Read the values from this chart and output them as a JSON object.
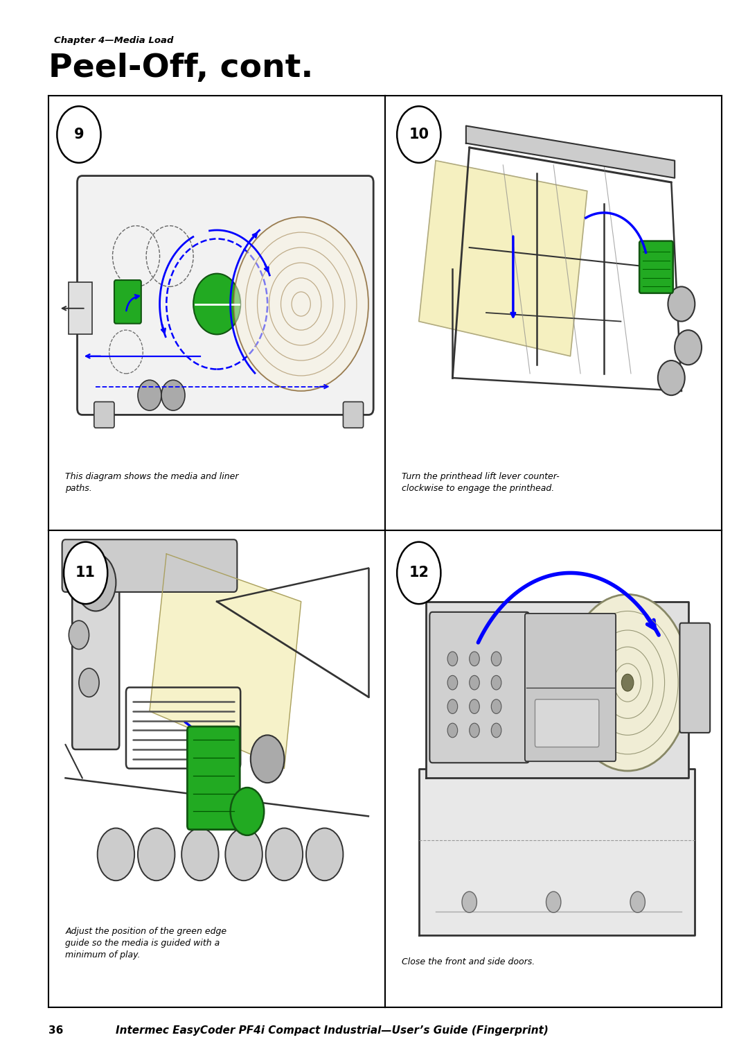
{
  "page_bg": "#ffffff",
  "chapter_label": "Chapter 4—Media Load",
  "title": "Peel-Off, cont.",
  "footer_number": "36",
  "footer_text": "Intermec EasyCoder PF4i Compact Industrial—User’s Guide (Fingerprint)",
  "steps": [
    {
      "number": "9",
      "caption_line1": "This diagram shows the media and liner",
      "caption_line2": "paths."
    },
    {
      "number": "10",
      "caption_line1": "Turn the printhead lift lever counter-",
      "caption_line2": "clockwise to engage the printhead."
    },
    {
      "number": "11",
      "caption_line1": "Adjust the position of the green edge",
      "caption_line2": "guide so the media is guided with a",
      "caption_line3": "minimum of play."
    },
    {
      "number": "12",
      "caption_line1": "Close the front and side doors."
    }
  ],
  "grid_border_color": "#000000",
  "caption_color": "#000000",
  "title_color": "#000000",
  "chapter_color": "#000000",
  "blue": "#0000ff",
  "green": "#22aa22",
  "yellow": "#f5f0c0",
  "dark_line": "#333333",
  "mid_gray": "#888888",
  "light_gray": "#cccccc"
}
